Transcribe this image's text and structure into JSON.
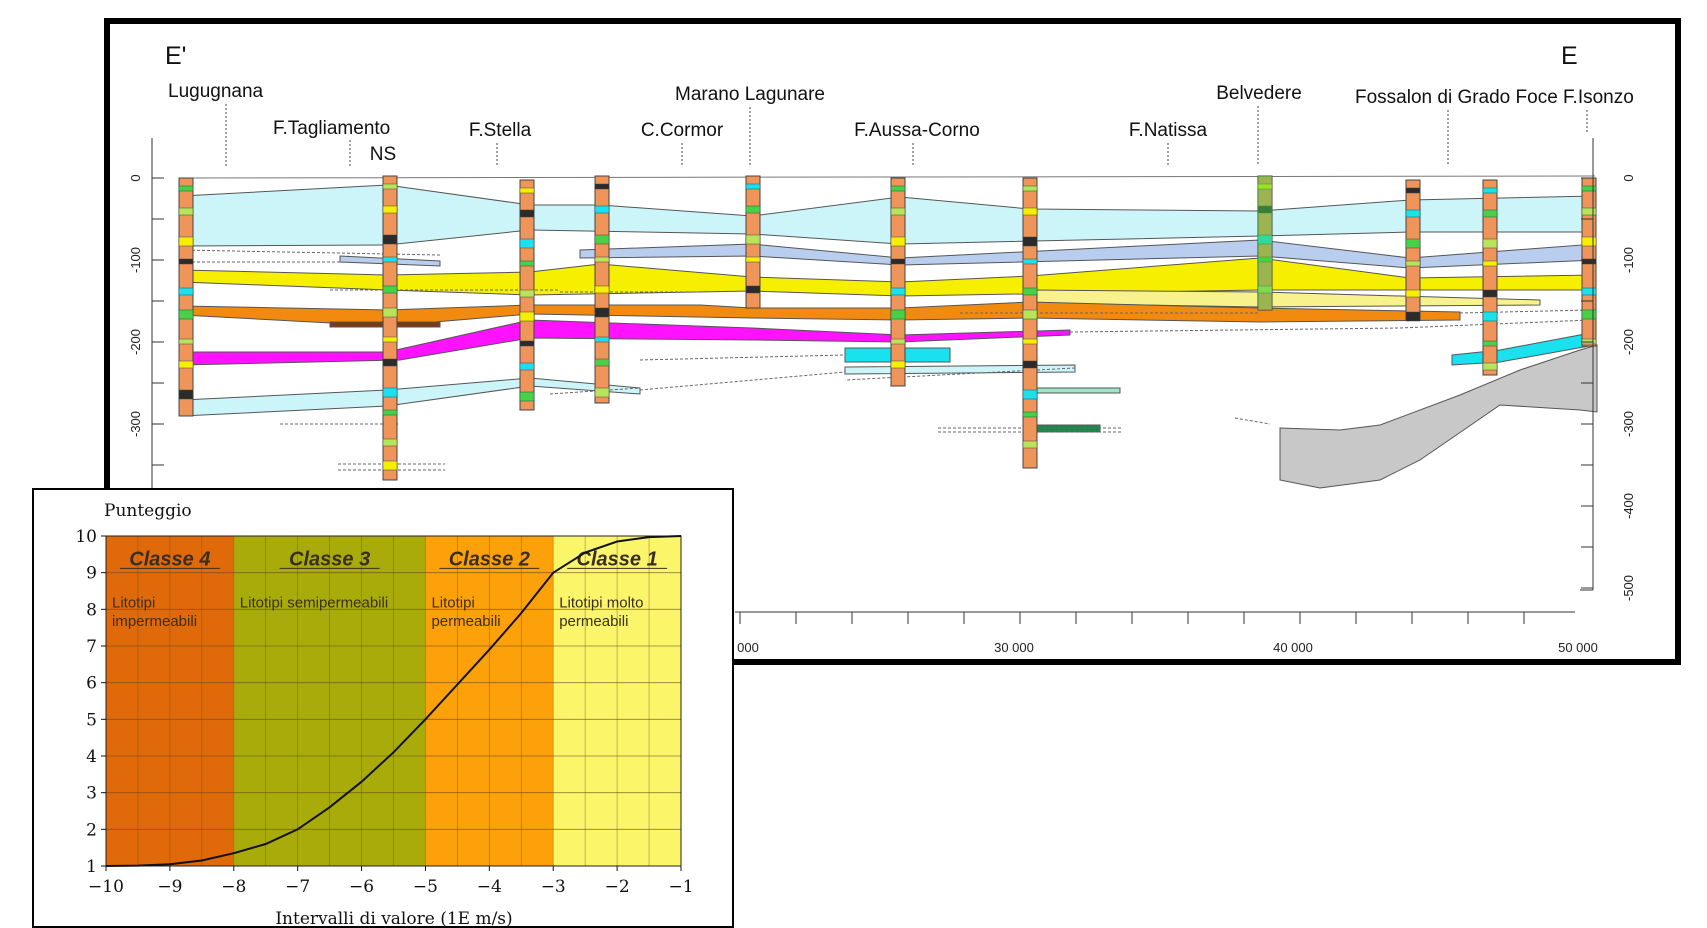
{
  "section": {
    "end_left": "E'",
    "end_right": "E",
    "locations": [
      {
        "id": "lugugnana",
        "label": "Lugugnana"
      },
      {
        "id": "tagliamento",
        "label": "F.Tagliamento"
      },
      {
        "id": "ns",
        "label": "NS"
      },
      {
        "id": "stella",
        "label": "F.Stella"
      },
      {
        "id": "cormor",
        "label": "C.Cormor"
      },
      {
        "id": "marano",
        "label": "Marano Lagunare"
      },
      {
        "id": "aussa",
        "label": "F.Aussa-Corno"
      },
      {
        "id": "natissa",
        "label": "F.Natissa"
      },
      {
        "id": "belvedere",
        "label": "Belvedere"
      },
      {
        "id": "fossalon",
        "label": "Fossalon di Grado Foce F.Isonzo"
      }
    ],
    "depth_ticks": [
      "0",
      "-100",
      "-200",
      "-300",
      "-400",
      "-500"
    ],
    "distance_ticks": [
      "000",
      "30 000",
      "40 000",
      "50 000"
    ],
    "colors": {
      "borehole": "#f0955a",
      "aquifer_a": "#ccf5fa",
      "aquifer_b": "#b9cdee",
      "aquifer_c": "#f6f000",
      "aquifer_d": "#f28a10",
      "aquifer_e": "#ff12ff",
      "aquifer_f": "#19e2ee",
      "bedrock": "#c8c8c8"
    }
  },
  "chart_data": {
    "type": "line",
    "title": "",
    "ylabel": "Punteggio",
    "xlabel": "Intervalli di valore (1E m/s)",
    "xlim": [
      -10,
      -1
    ],
    "ylim": [
      1,
      10
    ],
    "x_ticks": [
      "−10",
      "−9",
      "−8",
      "−7",
      "−6",
      "−5",
      "−4",
      "−3",
      "−2",
      "−1"
    ],
    "y_ticks": [
      "1",
      "2",
      "3",
      "4",
      "5",
      "6",
      "7",
      "8",
      "9",
      "10"
    ],
    "classes": [
      {
        "name": "Classe 4",
        "desc1": "Litotipi",
        "desc2": "impermeabili",
        "x_from": -10,
        "x_to": -8,
        "color": "#e0690a"
      },
      {
        "name": "Classe 3",
        "desc1": "Litotipi semipermeabili",
        "desc2": "",
        "x_from": -8,
        "x_to": -5,
        "color": "#a9ab0a"
      },
      {
        "name": "Classe 2",
        "desc1": "Litotipi",
        "desc2": "permeabili",
        "x_from": -5,
        "x_to": -3,
        "color": "#fda10a"
      },
      {
        "name": "Classe 1",
        "desc1": "Litotipi molto",
        "desc2": "permeabili",
        "x_from": -3,
        "x_to": -1,
        "color": "#fbf56a"
      }
    ],
    "curve": {
      "x": [
        -10,
        -9.5,
        -9,
        -8.5,
        -8,
        -7.5,
        -7,
        -6.5,
        -6,
        -5.5,
        -5,
        -4.5,
        -4,
        -3.5,
        -3,
        -2.5,
        -2,
        -1.5,
        -1
      ],
      "y": [
        1,
        1.01,
        1.05,
        1.15,
        1.35,
        1.6,
        2,
        2.6,
        3.3,
        4.1,
        5,
        5.95,
        6.9,
        7.9,
        9,
        9.55,
        9.85,
        9.97,
        10
      ]
    }
  }
}
